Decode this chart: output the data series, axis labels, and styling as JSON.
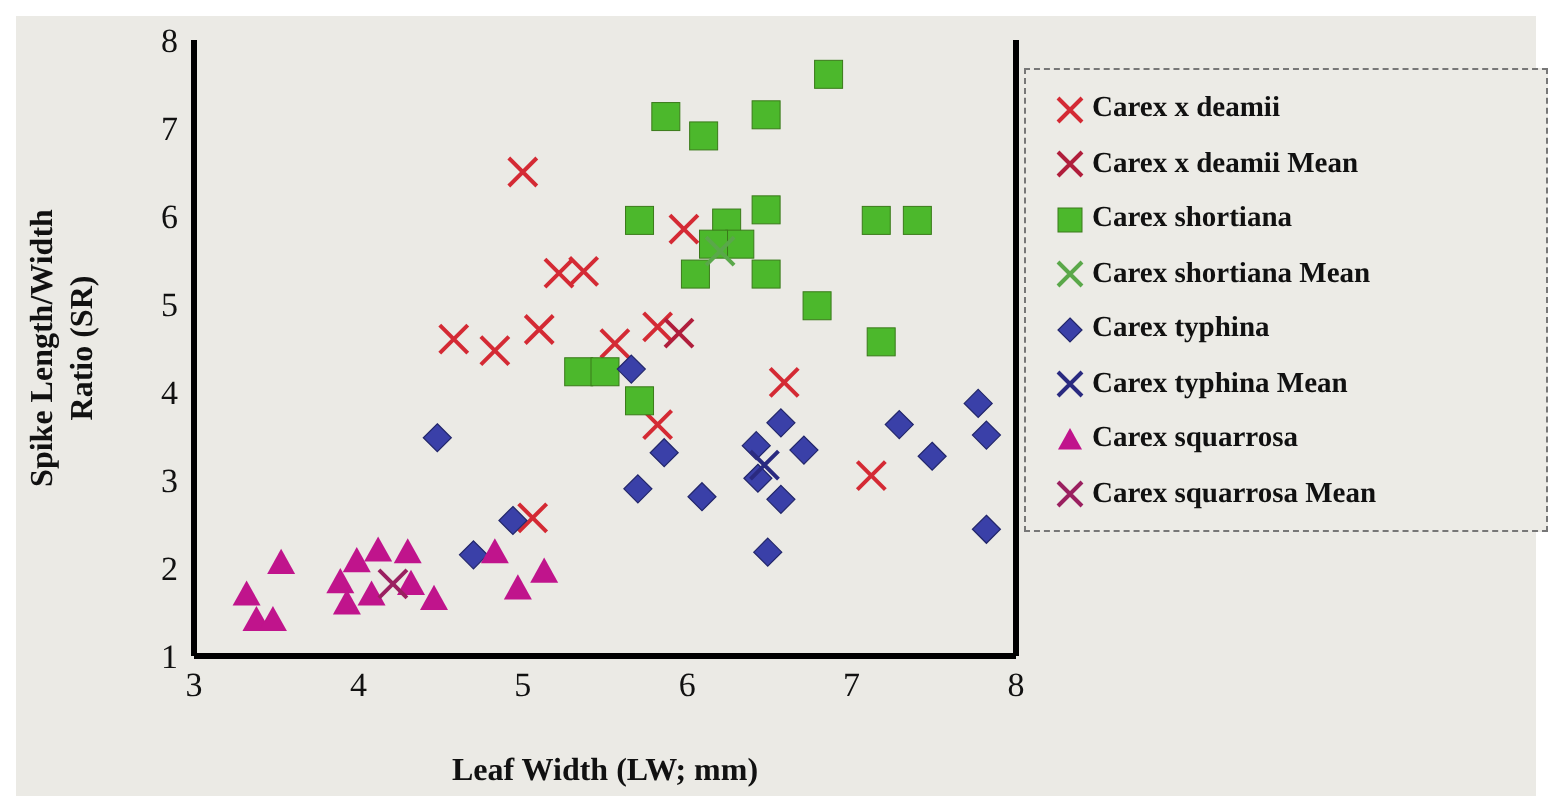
{
  "chart_data": {
    "type": "scatter",
    "xlabel": "Leaf Width (LW; mm)",
    "ylabel": "Spike Length/Width Ratio (SR)",
    "xlim": [
      3,
      8
    ],
    "ylim": [
      1,
      8
    ],
    "xticks": [
      3,
      4,
      5,
      6,
      7,
      8
    ],
    "yticks": [
      1,
      2,
      3,
      4,
      5,
      6,
      7,
      8
    ],
    "grid": false,
    "legend": "right",
    "series": [
      {
        "name": "Carex x deamii",
        "color": "#d42a34",
        "marker": "cross",
        "x": [
          5.0,
          5.22,
          5.37,
          4.58,
          4.83,
          5.1,
          5.06,
          5.98,
          5.82,
          5.56,
          6.59,
          5.82,
          7.12
        ],
        "values": [
          6.5,
          5.35,
          5.37,
          4.6,
          4.47,
          4.71,
          2.57,
          5.85,
          4.74,
          4.55,
          4.11,
          3.63,
          3.05
        ]
      },
      {
        "name": "Carex x deamii Mean",
        "color": "#b01e3c",
        "marker": "cross",
        "x": [
          5.95
        ],
        "values": [
          4.67
        ]
      },
      {
        "name": "Carex shortiana",
        "color": "#4cb82c",
        "marker": "square",
        "x": [
          6.86,
          5.87,
          6.1,
          6.48,
          5.71,
          7.15,
          7.4,
          6.24,
          6.48,
          6.48,
          6.05,
          6.32,
          6.16,
          6.79,
          7.18,
          5.34,
          5.5,
          5.71
        ],
        "values": [
          7.61,
          7.13,
          6.91,
          7.15,
          5.95,
          5.95,
          5.95,
          5.92,
          6.07,
          5.34,
          5.34,
          5.68,
          5.68,
          4.98,
          4.57,
          4.23,
          4.23,
          3.9
        ]
      },
      {
        "name": "Carex shortiana Mean",
        "color": "#5aa84a",
        "marker": "cross",
        "x": [
          6.2
        ],
        "values": [
          5.6
        ]
      },
      {
        "name": "Carex typhina",
        "color": "#3a40a8",
        "marker": "diamond",
        "x": [
          4.48,
          4.94,
          4.7,
          5.66,
          5.86,
          5.7,
          6.09,
          6.57,
          6.42,
          6.71,
          6.43,
          6.57,
          6.49,
          7.29,
          7.49,
          7.77,
          7.82,
          7.82
        ],
        "values": [
          3.48,
          2.54,
          2.15,
          4.26,
          3.31,
          2.9,
          2.81,
          3.65,
          3.39,
          3.34,
          3.02,
          2.78,
          2.18,
          3.63,
          3.27,
          3.87,
          3.51,
          2.44
        ]
      },
      {
        "name": "Carex typhina Mean",
        "color": "#2a2a80",
        "marker": "cross",
        "x": [
          6.47
        ],
        "values": [
          3.17
        ]
      },
      {
        "name": "Carex squarrosa",
        "color": "#c0148c",
        "marker": "triangle",
        "x": [
          3.32,
          3.53,
          3.38,
          3.48,
          3.89,
          3.99,
          4.12,
          4.08,
          4.3,
          4.32,
          4.46,
          4.83,
          4.97,
          5.13,
          3.93
        ],
        "values": [
          1.7,
          2.06,
          1.41,
          1.41,
          1.84,
          2.08,
          2.2,
          1.7,
          2.18,
          1.82,
          1.65,
          2.18,
          1.77,
          1.96,
          1.6
        ]
      },
      {
        "name": "Carex squarrosa Mean",
        "color": "#9a2060",
        "marker": "cross",
        "x": [
          4.21
        ],
        "values": [
          1.82
        ]
      }
    ]
  }
}
